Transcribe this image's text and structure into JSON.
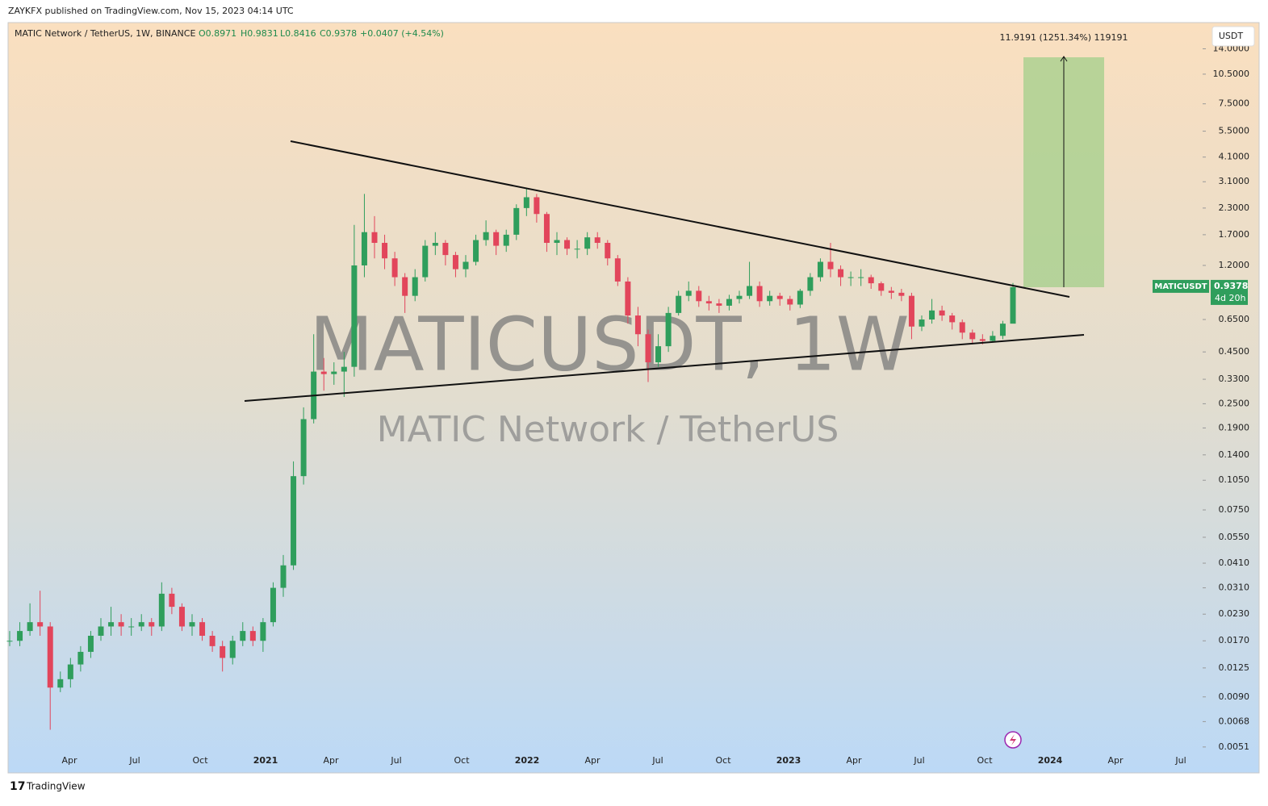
{
  "publisher": "ZAYKFX published on TradingView.com, Nov 15, 2023 04:14 UTC",
  "footer": "TradingView",
  "chart_data": {
    "type": "candlestick",
    "legend": {
      "symbol": "MATIC Network / TetherUS, 1W, BINANCE",
      "open": "O0.8971",
      "high": "H0.9831",
      "low": "L0.8416",
      "close": "C0.9378",
      "change": "+0.0407 (+4.54%)"
    },
    "watermark": "MATICUSDT, 1W",
    "watermark_subtitle": "MATIC Network / TetherUS",
    "currency": "USDT",
    "price_tag": {
      "symbol": "MATICUSDT",
      "countdown": "4d 20h"
    },
    "measure_label": "11.9191 (1251.34%) 119191",
    "up_color": "#2f9e5c",
    "down_color": "#e2455b",
    "log_scale": true,
    "ylim": [
      0.0038,
      18.5
    ],
    "yticks": [
      {
        "value": 14,
        "label": "14.0000"
      },
      {
        "value": 10.5,
        "label": "10.5000"
      },
      {
        "value": 7.5,
        "label": "7.5000"
      },
      {
        "value": 5.5,
        "label": "5.5000"
      },
      {
        "value": 4.1,
        "label": "4.1000"
      },
      {
        "value": 3.1,
        "label": "3.1000"
      },
      {
        "value": 2.3,
        "label": "2.3000"
      },
      {
        "value": 1.7,
        "label": "1.7000"
      },
      {
        "value": 1.2,
        "label": "1.2000"
      },
      {
        "value": 0.65,
        "label": "0.6500"
      },
      {
        "value": 0.45,
        "label": "0.4500"
      },
      {
        "value": 0.33,
        "label": "0.3300"
      },
      {
        "value": 0.25,
        "label": "0.2500"
      },
      {
        "value": 0.19,
        "label": "0.1900"
      },
      {
        "value": 0.14,
        "label": "0.1400"
      },
      {
        "value": 0.105,
        "label": "0.1050"
      },
      {
        "value": 0.075,
        "label": "0.0750"
      },
      {
        "value": 0.055,
        "label": "0.0550"
      },
      {
        "value": 0.041,
        "label": "0.0410"
      },
      {
        "value": 0.031,
        "label": "0.0310"
      },
      {
        "value": 0.023,
        "label": "0.0230"
      },
      {
        "value": 0.017,
        "label": "0.0170"
      },
      {
        "value": 0.0125,
        "label": "0.0125"
      },
      {
        "value": 0.009,
        "label": "0.0090"
      },
      {
        "value": 0.0068,
        "label": "0.0068"
      },
      {
        "value": 0.0051,
        "label": "0.0051"
      }
    ],
    "x_labels": [
      "Apr",
      "Jul",
      "Oct",
      "2021",
      "Apr",
      "Jul",
      "Oct",
      "2022",
      "Apr",
      "Jul",
      "Oct",
      "2023",
      "Apr",
      "Jul",
      "Oct",
      "2024",
      "Apr",
      "Jul"
    ],
    "close": [
      0.017,
      0.019,
      0.021,
      0.02,
      0.01,
      0.011,
      0.013,
      0.015,
      0.018,
      0.02,
      0.021,
      0.02,
      0.02,
      0.021,
      0.02,
      0.029,
      0.025,
      0.02,
      0.021,
      0.018,
      0.016,
      0.014,
      0.017,
      0.019,
      0.017,
      0.021,
      0.031,
      0.04,
      0.11,
      0.21,
      0.36,
      0.35,
      0.36,
      0.38,
      1.2,
      1.75,
      1.55,
      1.3,
      1.05,
      0.85,
      1.05,
      1.5,
      1.55,
      1.35,
      1.15,
      1.25,
      1.6,
      1.75,
      1.5,
      1.7,
      2.3,
      2.6,
      2.15,
      1.55,
      1.6,
      1.45,
      1.45,
      1.65,
      1.55,
      1.3,
      1.0,
      0.68,
      0.55,
      0.4,
      0.48,
      0.7,
      0.85,
      0.9,
      0.8,
      0.78,
      0.76,
      0.82,
      0.85,
      0.95,
      0.8,
      0.85,
      0.82,
      0.77,
      0.9,
      1.05,
      1.25,
      1.15,
      1.05,
      1.05,
      1.05,
      0.98,
      0.9,
      0.88,
      0.85,
      0.6,
      0.65,
      0.72,
      0.68,
      0.63,
      0.56,
      0.52,
      0.51,
      0.54,
      0.62,
      0.9378
    ],
    "high": [
      0.019,
      0.021,
      0.026,
      0.03,
      0.021,
      0.012,
      0.014,
      0.016,
      0.019,
      0.022,
      0.025,
      0.023,
      0.022,
      0.023,
      0.022,
      0.033,
      0.031,
      0.026,
      0.023,
      0.022,
      0.019,
      0.017,
      0.018,
      0.021,
      0.02,
      0.022,
      0.033,
      0.045,
      0.13,
      0.24,
      0.55,
      0.42,
      0.4,
      0.45,
      1.9,
      2.7,
      2.1,
      1.7,
      1.4,
      1.1,
      1.15,
      1.6,
      1.75,
      1.6,
      1.4,
      1.35,
      1.7,
      2.0,
      1.8,
      1.8,
      2.4,
      2.9,
      2.7,
      2.2,
      1.75,
      1.65,
      1.6,
      1.75,
      1.75,
      1.6,
      1.35,
      1.05,
      0.75,
      0.58,
      0.55,
      0.75,
      0.9,
      1.0,
      0.95,
      0.85,
      0.82,
      0.86,
      0.9,
      1.25,
      1.0,
      0.9,
      0.88,
      0.85,
      0.92,
      1.1,
      1.3,
      1.55,
      1.2,
      1.12,
      1.15,
      1.08,
      1.0,
      0.94,
      0.92,
      0.88,
      0.68,
      0.82,
      0.76,
      0.7,
      0.65,
      0.58,
      0.55,
      0.57,
      0.64,
      0.9831
    ],
    "low": [
      0.016,
      0.016,
      0.018,
      0.018,
      0.0062,
      0.0095,
      0.01,
      0.012,
      0.014,
      0.017,
      0.018,
      0.018,
      0.018,
      0.019,
      0.018,
      0.019,
      0.023,
      0.019,
      0.018,
      0.017,
      0.015,
      0.012,
      0.013,
      0.016,
      0.016,
      0.015,
      0.02,
      0.028,
      0.038,
      0.1,
      0.2,
      0.29,
      0.31,
      0.27,
      0.34,
      1.05,
      1.3,
      1.15,
      0.95,
      0.7,
      0.8,
      1.0,
      1.35,
      1.2,
      1.05,
      1.05,
      1.2,
      1.5,
      1.35,
      1.4,
      1.6,
      2.1,
      1.95,
      1.4,
      1.35,
      1.35,
      1.3,
      1.35,
      1.45,
      1.2,
      0.95,
      0.62,
      0.48,
      0.32,
      0.38,
      0.45,
      0.68,
      0.8,
      0.75,
      0.72,
      0.7,
      0.72,
      0.78,
      0.82,
      0.75,
      0.76,
      0.76,
      0.72,
      0.74,
      0.85,
      1.0,
      1.05,
      0.95,
      0.95,
      0.95,
      0.92,
      0.85,
      0.82,
      0.8,
      0.52,
      0.57,
      0.62,
      0.64,
      0.58,
      0.52,
      0.49,
      0.49,
      0.5,
      0.52,
      0.8416
    ]
  }
}
